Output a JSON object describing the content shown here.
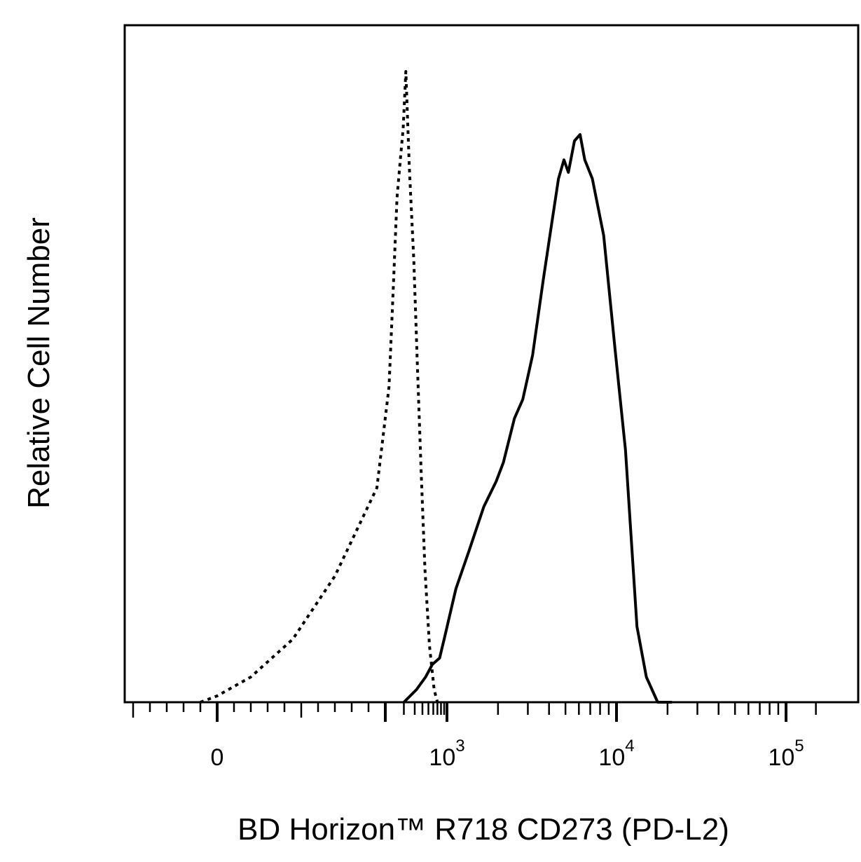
{
  "chart_data": {
    "type": "line",
    "title": "",
    "xlabel": "BD Horizon™ R718 CD273 (PD-L2)",
    "ylabel": "Relative Cell Number",
    "x_scale": "biexponential",
    "xlim": [
      -190,
      150000
    ],
    "ylim": [
      0,
      1
    ],
    "grid": false,
    "legend": "none",
    "x_ticks": [
      {
        "value": 0,
        "base": "0",
        "exp": ""
      },
      {
        "value": 1000,
        "base": "10",
        "exp": "3"
      },
      {
        "value": 10000,
        "base": "10",
        "exp": "4"
      },
      {
        "value": 100000,
        "base": "10",
        "exp": "5"
      }
    ],
    "series": [
      {
        "style": "dotted",
        "color": "#000000",
        "points": [
          [
            -10,
            0.0
          ],
          [
            0,
            0.01
          ],
          [
            20,
            0.04
          ],
          [
            45,
            0.1
          ],
          [
            70,
            0.2
          ],
          [
            95,
            0.34
          ],
          [
            115,
            0.5
          ],
          [
            135,
            0.66
          ],
          [
            155,
            0.8
          ],
          [
            175,
            0.86
          ],
          [
            195,
            0.91
          ],
          [
            215,
            1.0
          ],
          [
            245,
            0.85
          ],
          [
            290,
            0.7
          ],
          [
            330,
            0.54
          ],
          [
            380,
            0.37
          ],
          [
            440,
            0.21
          ],
          [
            520,
            0.09
          ],
          [
            620,
            0.02
          ],
          [
            700,
            0.0
          ]
        ]
      },
      {
        "style": "solid",
        "color": "#000000",
        "points": [
          [
            200,
            0.0
          ],
          [
            320,
            0.02
          ],
          [
            450,
            0.04
          ],
          [
            580,
            0.06
          ],
          [
            760,
            0.07
          ],
          [
            900,
            0.1
          ],
          [
            1130,
            0.18
          ],
          [
            1350,
            0.24
          ],
          [
            1650,
            0.31
          ],
          [
            1950,
            0.35
          ],
          [
            2150,
            0.38
          ],
          [
            2500,
            0.45
          ],
          [
            2800,
            0.48
          ],
          [
            3200,
            0.55
          ],
          [
            3700,
            0.67
          ],
          [
            4100,
            0.75
          ],
          [
            4550,
            0.83
          ],
          [
            4900,
            0.86
          ],
          [
            5200,
            0.84
          ],
          [
            5650,
            0.89
          ],
          [
            6100,
            0.9
          ],
          [
            6500,
            0.86
          ],
          [
            7200,
            0.83
          ],
          [
            8400,
            0.74
          ],
          [
            9800,
            0.56
          ],
          [
            11300,
            0.4
          ],
          [
            13200,
            0.12
          ],
          [
            15000,
            0.04
          ],
          [
            17500,
            0.0
          ],
          [
            21000,
            0.0
          ]
        ]
      }
    ]
  }
}
